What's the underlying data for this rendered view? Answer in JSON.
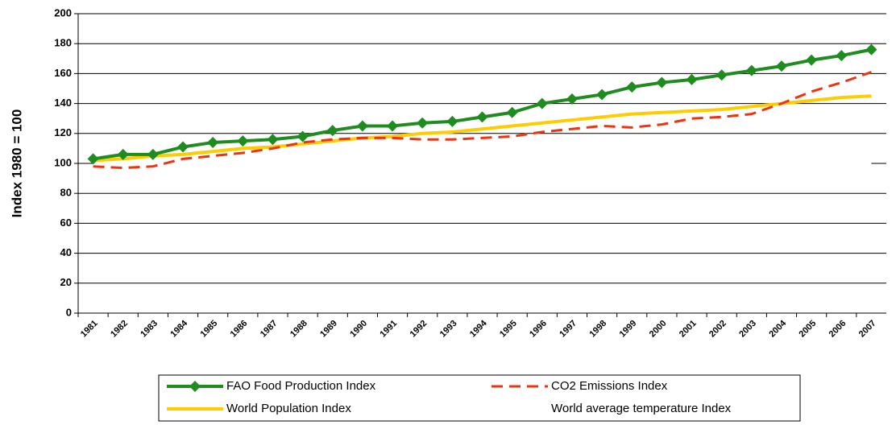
{
  "chart_data": {
    "type": "line",
    "y_label": "Index 1980 = 100",
    "categories": [
      "1981",
      "1982",
      "1983",
      "1984",
      "1985",
      "1986",
      "1987",
      "1988",
      "1989",
      "1990",
      "1991",
      "1992",
      "1993",
      "1994",
      "1995",
      "1996",
      "1997",
      "1998",
      "1999",
      "2000",
      "2001",
      "2002",
      "2003",
      "2004",
      "2005",
      "2006",
      "2007"
    ],
    "series": [
      {
        "name": "FAO Food Production Index",
        "color": "#1e8c1e",
        "style": "solid-marker",
        "values": [
          103,
          106,
          106,
          111,
          114,
          115,
          116,
          118,
          122,
          125,
          125,
          127,
          128,
          131,
          134,
          140,
          143,
          146,
          151,
          154,
          156,
          159,
          162,
          165,
          169,
          172,
          176
        ]
      },
      {
        "name": "CO2 Emissions Index",
        "color": "#ee3311",
        "style": "dashed",
        "values": [
          98,
          97,
          98,
          103,
          105,
          107,
          110,
          114,
          116,
          117,
          117,
          116,
          116,
          117,
          118,
          121,
          123,
          125,
          124,
          126,
          130,
          131,
          133,
          140,
          148,
          154,
          161
        ]
      },
      {
        "name": "World Population Index",
        "color": "#ffcc00",
        "style": "solid",
        "values": [
          102,
          103,
          105,
          106,
          108,
          110,
          111,
          113,
          115,
          117,
          118,
          120,
          121,
          123,
          125,
          127,
          129,
          131,
          133,
          134,
          135,
          136,
          138,
          140,
          142,
          144,
          145
        ]
      },
      {
        "name": "World average temperature Index",
        "color": "#ffffff",
        "style": "solid",
        "values": [
          100,
          100,
          100,
          100,
          100,
          100,
          100,
          100,
          100,
          100,
          100,
          100,
          100,
          100,
          100,
          100,
          100,
          100,
          100,
          100,
          100,
          100,
          100,
          100,
          100,
          100,
          100
        ]
      }
    ],
    "ylim": [
      0,
      200
    ],
    "yticks": [
      0,
      20,
      40,
      60,
      80,
      100,
      120,
      140,
      160,
      180,
      200
    ],
    "grid": true,
    "legend": "bottom"
  }
}
